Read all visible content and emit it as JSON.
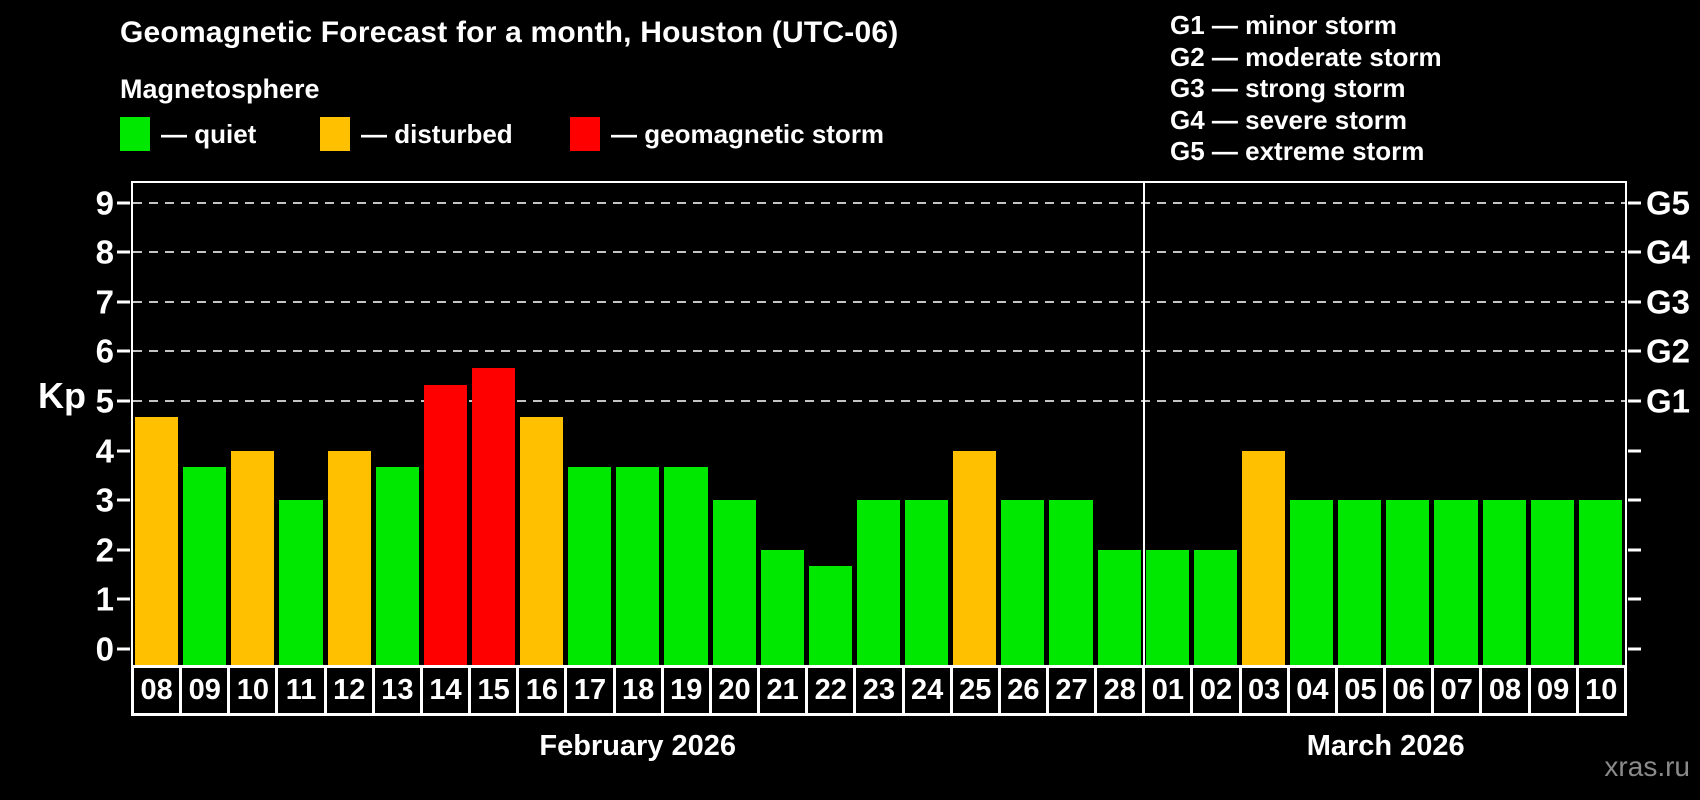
{
  "title": "Geomagnetic Forecast for a month, Houston (UTC-06)",
  "subtitle": "Magnetosphere",
  "legend": {
    "items": [
      {
        "state": "quiet",
        "label": "— quiet",
        "color": "#00e800"
      },
      {
        "state": "disturbed",
        "label": "— disturbed",
        "color": "#ffc000"
      },
      {
        "state": "storm",
        "label": "— geomagnetic storm",
        "color": "#ff0000"
      }
    ]
  },
  "g_legend": [
    "G1 — minor storm",
    "G2 — moderate storm",
    "G3 — strong storm",
    "G4 — severe storm",
    "G5 — extreme storm"
  ],
  "watermark": "xras.ru",
  "chart_data": {
    "type": "bar",
    "title": "Geomagnetic Forecast for a month, Houston (UTC-06)",
    "ylabel": "Kp",
    "ylim": [
      -0.35,
      9.4
    ],
    "y_ticks": [
      0,
      1,
      2,
      3,
      4,
      5,
      6,
      7,
      8,
      9
    ],
    "grid_kp": [
      5,
      6,
      7,
      8,
      9
    ],
    "grid_on": true,
    "g_levels": [
      {
        "kp": 5,
        "label": "G1"
      },
      {
        "kp": 6,
        "label": "G2"
      },
      {
        "kp": 7,
        "label": "G3"
      },
      {
        "kp": 8,
        "label": "G4"
      },
      {
        "kp": 9,
        "label": "G5"
      }
    ],
    "month_split_index": 21,
    "months": [
      {
        "label": "February 2026",
        "days": 21
      },
      {
        "label": "March 2026",
        "days": 10
      }
    ],
    "categories": [
      "08",
      "09",
      "10",
      "11",
      "12",
      "13",
      "14",
      "15",
      "16",
      "17",
      "18",
      "19",
      "20",
      "21",
      "22",
      "23",
      "24",
      "25",
      "26",
      "27",
      "28",
      "01",
      "02",
      "03",
      "04",
      "05",
      "06",
      "07",
      "08",
      "09",
      "10"
    ],
    "values": [
      4.67,
      3.67,
      4,
      3,
      4,
      3.67,
      5.33,
      5.67,
      4.67,
      3.67,
      3.67,
      3.67,
      3,
      2,
      1.67,
      3,
      3,
      4,
      3,
      3,
      2,
      2,
      2,
      4,
      3,
      3,
      3,
      3,
      3,
      3,
      3
    ],
    "states": [
      "disturbed",
      "quiet",
      "disturbed",
      "quiet",
      "disturbed",
      "quiet",
      "storm",
      "storm",
      "disturbed",
      "quiet",
      "quiet",
      "quiet",
      "quiet",
      "quiet",
      "quiet",
      "quiet",
      "quiet",
      "disturbed",
      "quiet",
      "quiet",
      "quiet",
      "quiet",
      "quiet",
      "disturbed",
      "quiet",
      "quiet",
      "quiet",
      "quiet",
      "quiet",
      "quiet",
      "quiet"
    ]
  }
}
